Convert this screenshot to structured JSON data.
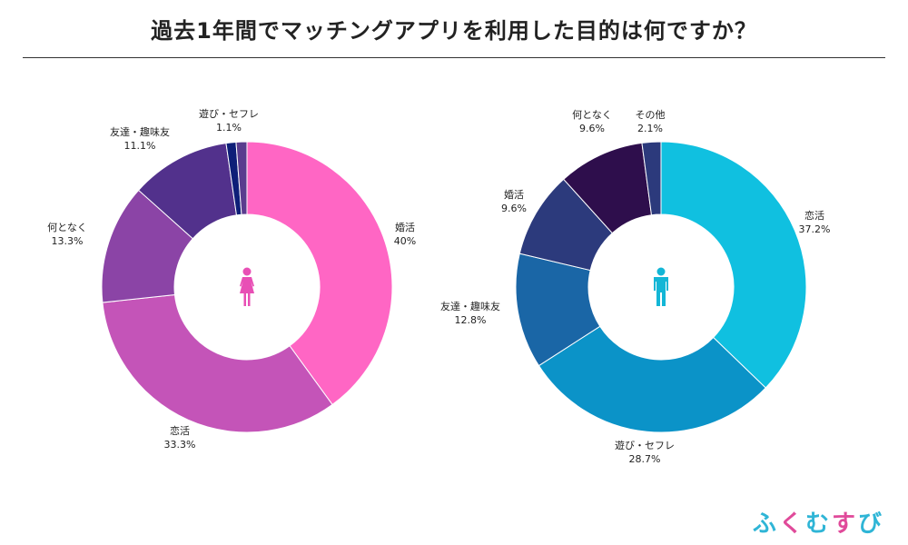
{
  "title": "過去1年間でマッチングアプリを利用した目的は何ですか？",
  "logo": {
    "text": "ふくむすび",
    "colors": [
      "#2fb5d6",
      "#e04a9a",
      "#2fb5d6",
      "#e04a9a",
      "#2fb5d6"
    ]
  },
  "chart_data": [
    {
      "type": "pie",
      "variant": "donut",
      "group": "female",
      "icon": "female-icon",
      "icon_color": "#e84fb5",
      "slices": [
        {
          "label": "婚活",
          "value": 40,
          "value_text": "40%",
          "color": "#ff66c4"
        },
        {
          "label": "恋活",
          "value": 33.3,
          "value_text": "33.3%",
          "color": "#c454b8"
        },
        {
          "label": "何となく",
          "value": 13.3,
          "value_text": "13.3%",
          "color": "#8b44a6"
        },
        {
          "label": "友達・趣味友",
          "value": 11.1,
          "value_text": "11.1%",
          "color": "#52318c"
        },
        {
          "label": "遊び・セフレ",
          "value": 1.1,
          "value_text": "1.1%",
          "color": "#0e1f78"
        },
        {
          "label": "",
          "value": 1.2,
          "value_text": "",
          "color": "#5a3c8e"
        }
      ]
    },
    {
      "type": "pie",
      "variant": "donut",
      "group": "male",
      "icon": "male-icon",
      "icon_color": "#13b6d6",
      "slices": [
        {
          "label": "恋活",
          "value": 37.2,
          "value_text": "37.2%",
          "color": "#10c0e0"
        },
        {
          "label": "遊び・セフレ",
          "value": 28.7,
          "value_text": "28.7%",
          "color": "#0b93c8"
        },
        {
          "label": "友達・趣味友",
          "value": 12.8,
          "value_text": "12.8%",
          "color": "#1a66a6"
        },
        {
          "label": "婚活",
          "value": 9.6,
          "value_text": "9.6%",
          "color": "#2c3a7c"
        },
        {
          "label": "何となく",
          "value": 9.6,
          "value_text": "9.6%",
          "color": "#2e0e4c"
        },
        {
          "label": "その他",
          "value": 2.1,
          "value_text": "2.1%",
          "color": "#2c3a7c"
        }
      ]
    }
  ]
}
